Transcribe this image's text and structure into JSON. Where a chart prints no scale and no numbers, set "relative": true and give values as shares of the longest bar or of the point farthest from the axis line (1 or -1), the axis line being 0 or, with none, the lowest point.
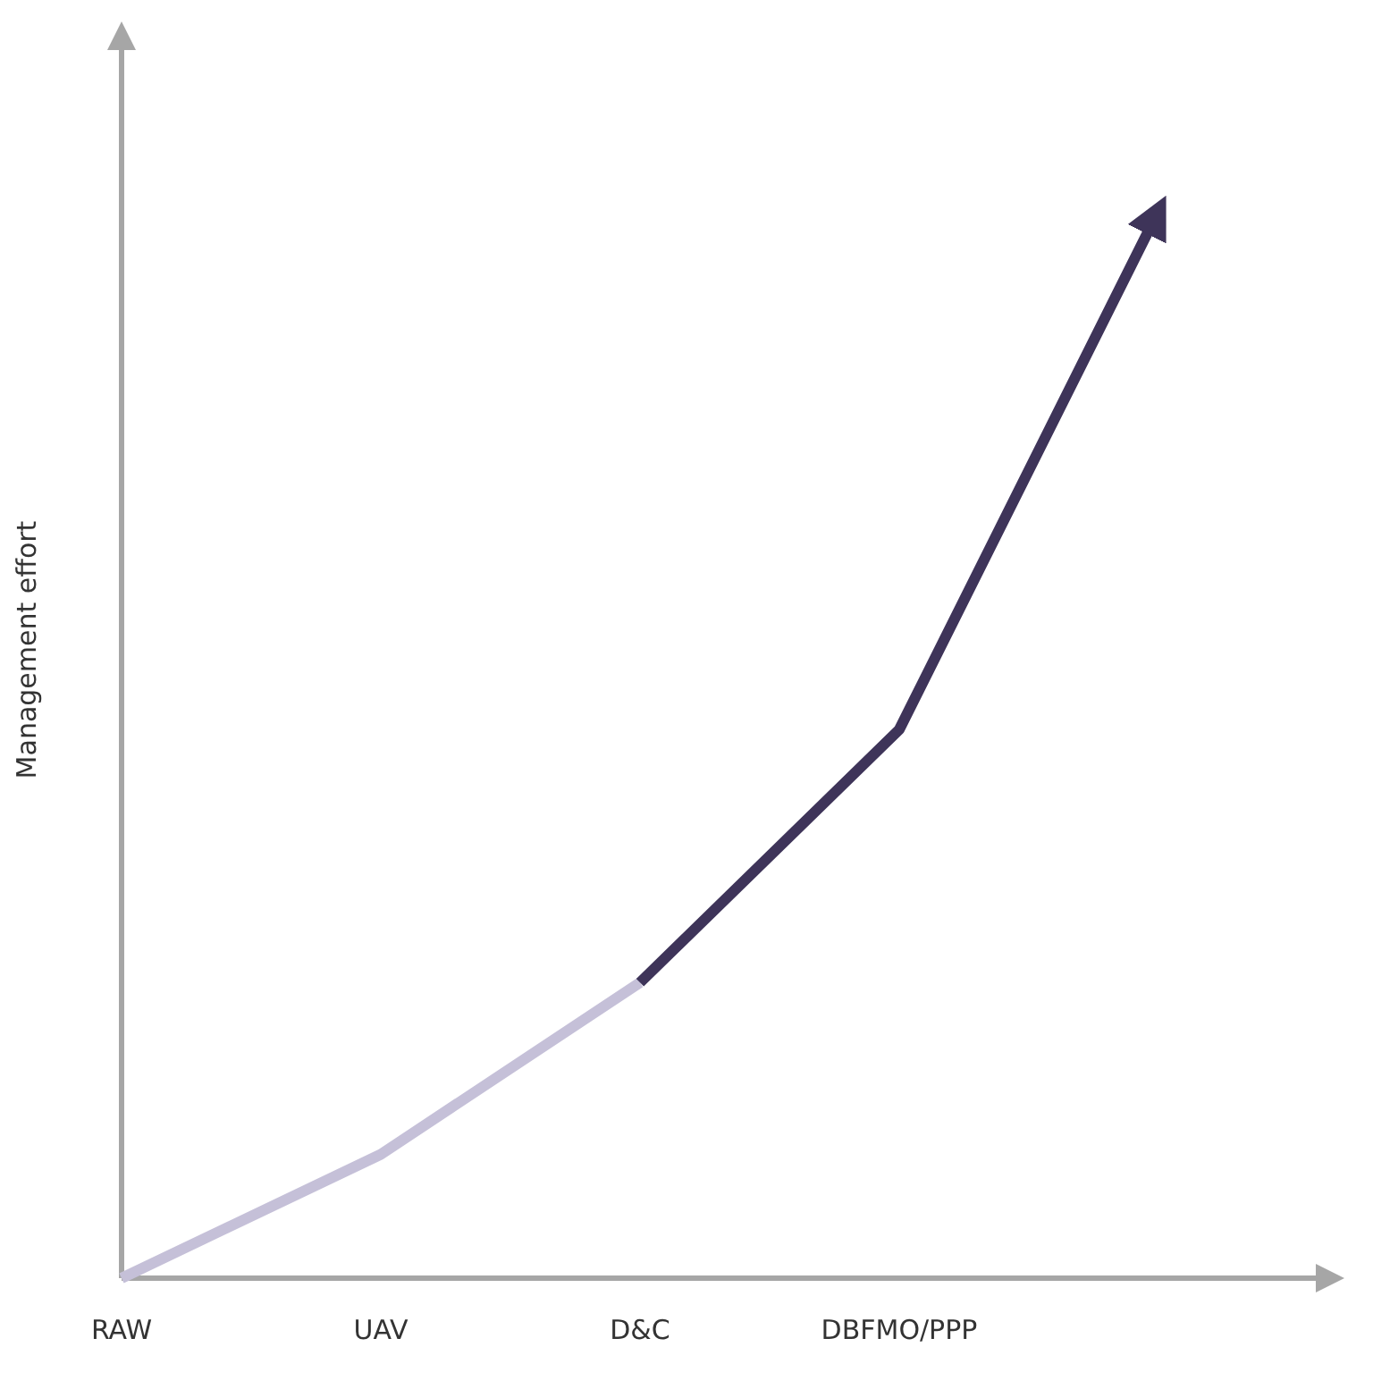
{
  "chart_data": {
    "type": "line",
    "ylabel": "Management effort",
    "relative": true,
    "categories": [
      "RAW",
      "UAV",
      "D&C",
      "DBFMO/PPP",
      null
    ],
    "series": [
      {
        "color": "#c5c0d8",
        "values": [
          0,
          0.116,
          0.277,
          null,
          null
        ]
      },
      {
        "color": "#3e3459",
        "values": [
          null,
          null,
          0.277,
          0.514,
          1
        ]
      }
    ],
    "marker": "none",
    "line_style": "solid"
  }
}
